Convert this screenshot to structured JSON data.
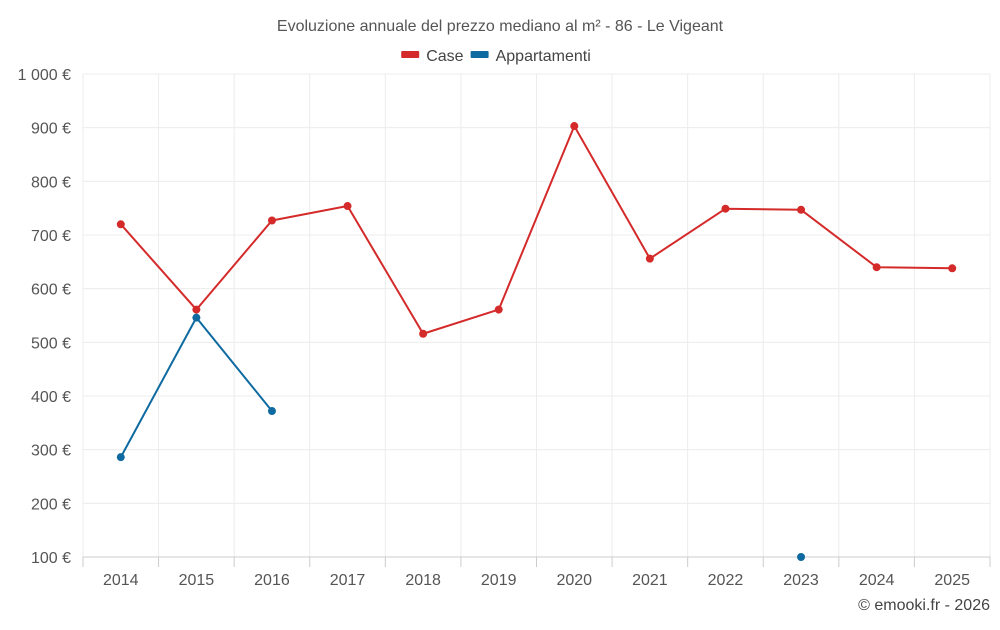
{
  "chart_data": {
    "type": "line",
    "title": "Evoluzione annuale del prezzo mediano al m² - 86 - Le Vigeant",
    "categories": [
      "2014",
      "2015",
      "2016",
      "2017",
      "2018",
      "2019",
      "2020",
      "2021",
      "2022",
      "2023",
      "2024",
      "2025"
    ],
    "ylim": [
      100,
      1000
    ],
    "yticks": [
      100,
      200,
      300,
      400,
      500,
      600,
      700,
      800,
      900,
      1000
    ],
    "ytick_labels": [
      "100 €",
      "200 €",
      "300 €",
      "400 €",
      "500 €",
      "600 €",
      "700 €",
      "800 €",
      "900 €",
      "1 000 €"
    ],
    "xlabel": "",
    "ylabel": "",
    "grid": true,
    "legend_position": "top-center",
    "series": [
      {
        "name": "Case",
        "color": "#d42a2a",
        "values": [
          720,
          561,
          727,
          754,
          516,
          561,
          903,
          656,
          749,
          747,
          640,
          638
        ]
      },
      {
        "name": "Appartamenti",
        "color": "#0e6aa0",
        "values": [
          286,
          546,
          372,
          null,
          null,
          null,
          null,
          null,
          null,
          100,
          null,
          null
        ]
      }
    ]
  },
  "credit": "© emooki.fr - 2026"
}
